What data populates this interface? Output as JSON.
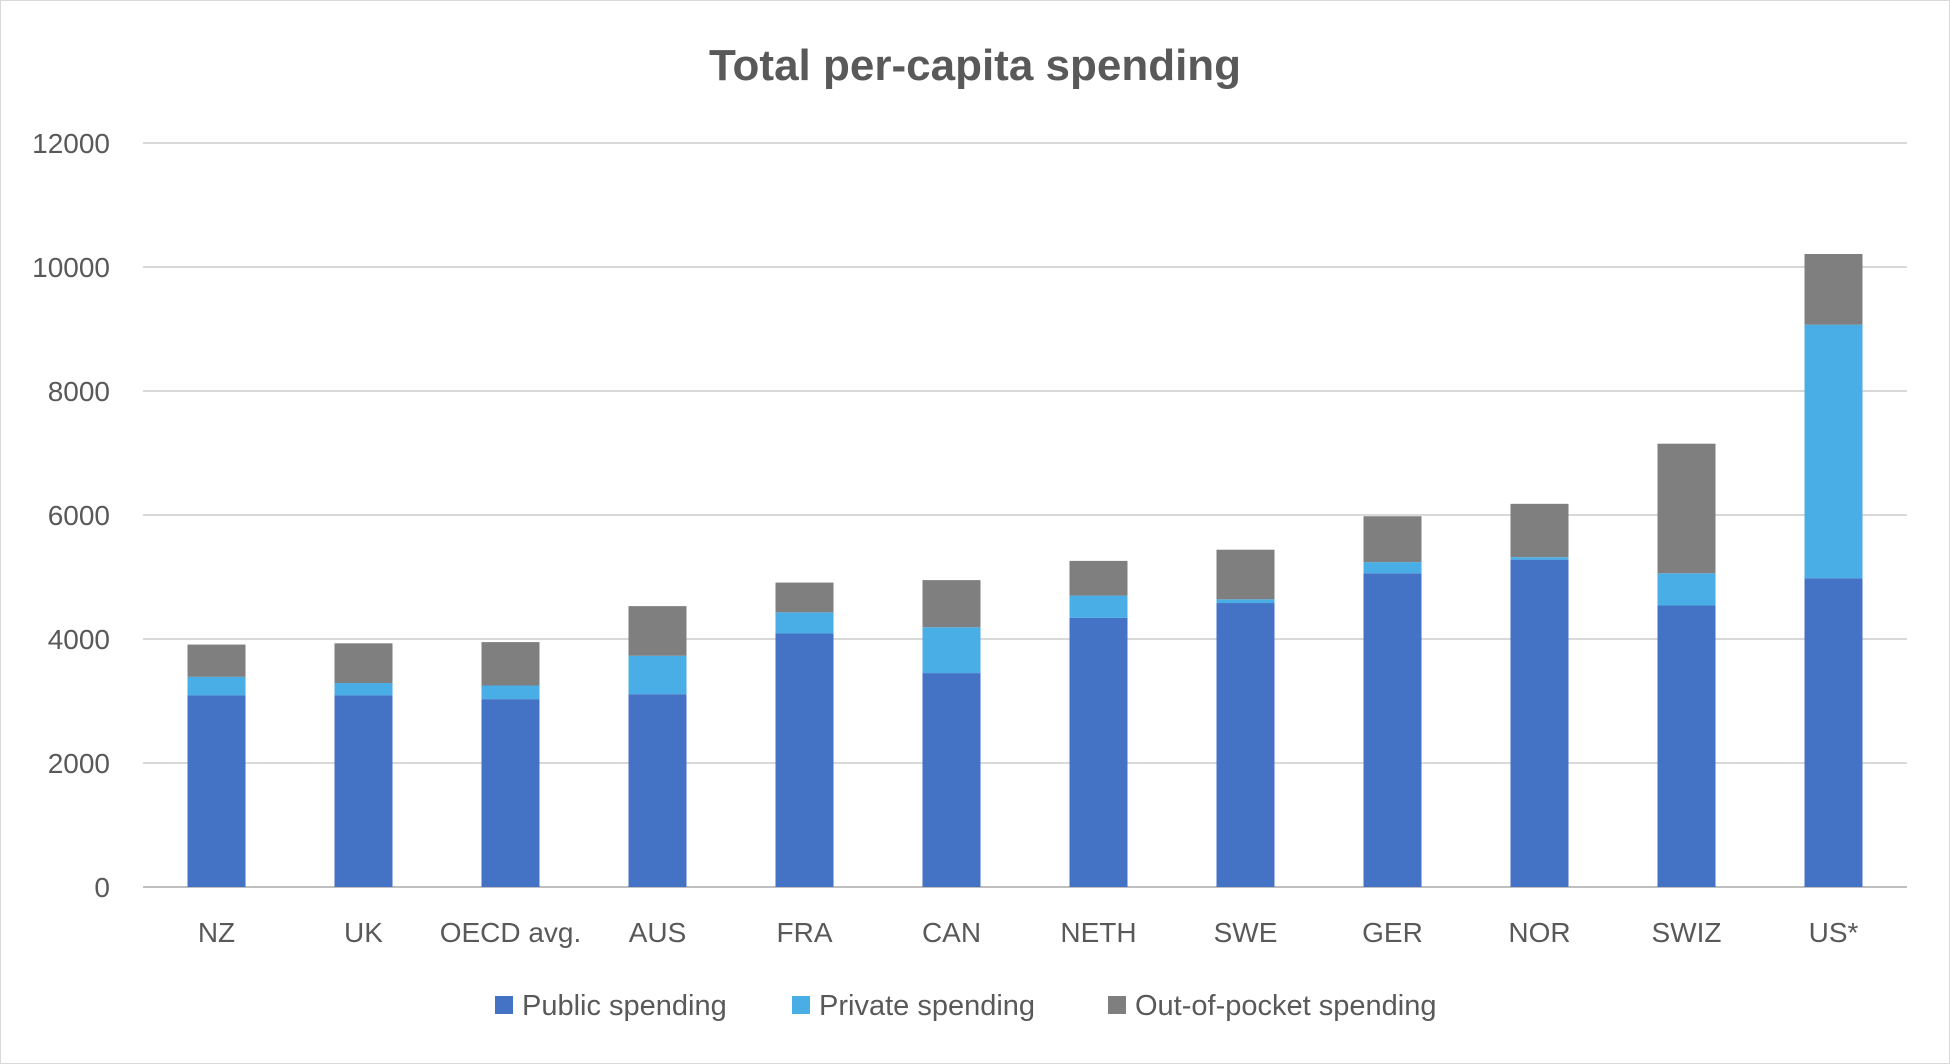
{
  "chart_data": {
    "type": "bar",
    "stacked": true,
    "title": "Total per-capita spending",
    "xlabel": "",
    "ylabel": "",
    "ylim": [
      0,
      12000
    ],
    "yticks": [
      0,
      2000,
      4000,
      6000,
      8000,
      10000,
      12000
    ],
    "grid": true,
    "legend_position": "bottom",
    "categories": [
      "NZ",
      "UK",
      "OECD avg.",
      "AUS",
      "FRA",
      "CAN",
      "NETH",
      "SWE",
      "GER",
      "NOR",
      "SWIZ",
      "US*"
    ],
    "series": [
      {
        "name": "Public spending",
        "color": "#4472C4",
        "values": [
          3090,
          3090,
          3030,
          3110,
          4090,
          3450,
          4340,
          4580,
          5060,
          5280,
          4540,
          4980
        ]
      },
      {
        "name": "Private spending",
        "color": "#4AAEE6",
        "values": [
          300,
          200,
          220,
          620,
          340,
          740,
          360,
          60,
          180,
          40,
          520,
          4090
        ]
      },
      {
        "name": "Out-of-pocket spending",
        "color": "#7F7F7F",
        "values": [
          520,
          640,
          700,
          800,
          480,
          760,
          560,
          800,
          740,
          860,
          2090,
          1140
        ]
      }
    ]
  }
}
